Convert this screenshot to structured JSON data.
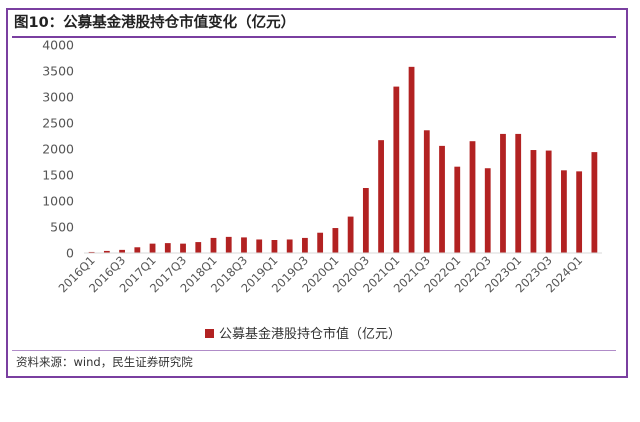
{
  "title": "图10：公募基金港股持仓市值变化（亿元）",
  "source": "资料来源：wind，民生证券研究院",
  "chart_data": {
    "type": "bar",
    "categories": [
      "2016Q1",
      "2016Q2",
      "2016Q3",
      "2016Q4",
      "2017Q1",
      "2017Q2",
      "2017Q3",
      "2017Q4",
      "2018Q1",
      "2018Q2",
      "2018Q3",
      "2018Q4",
      "2019Q1",
      "2019Q2",
      "2019Q3",
      "2019Q4",
      "2020Q1",
      "2020Q2",
      "2020Q3",
      "2020Q4",
      "2021Q1",
      "2021Q2",
      "2021Q3",
      "2021Q4",
      "2022Q1",
      "2022Q2",
      "2022Q3",
      "2022Q4",
      "2023Q1",
      "2023Q2",
      "2023Q3",
      "2023Q4",
      "2024Q1",
      "2024Q2"
    ],
    "tick_labels": [
      "2016Q1",
      "2016Q3",
      "2017Q1",
      "2017Q3",
      "2018Q1",
      "2018Q3",
      "2019Q1",
      "2019Q3",
      "2020Q1",
      "2020Q3",
      "2021Q1",
      "2021Q3",
      "2022Q1",
      "2022Q3",
      "2023Q1",
      "2023Q3",
      "2024Q1"
    ],
    "series": [
      {
        "name": "公募基金港股持仓市值（亿元）",
        "color": "#b22222",
        "values": [
          20,
          40,
          60,
          110,
          180,
          190,
          180,
          210,
          290,
          310,
          300,
          260,
          250,
          260,
          290,
          390,
          480,
          700,
          1250,
          2170,
          3200,
          3580,
          2360,
          2060,
          1660,
          2150,
          1630,
          2290,
          2290,
          1980,
          1970,
          1590,
          1570,
          1940
        ]
      }
    ],
    "ylim": [
      0,
      4000
    ],
    "yticks": [
      0,
      500,
      1000,
      1500,
      2000,
      2500,
      3000,
      3500,
      4000
    ],
    "grid": false,
    "legend": "bottom-center"
  }
}
